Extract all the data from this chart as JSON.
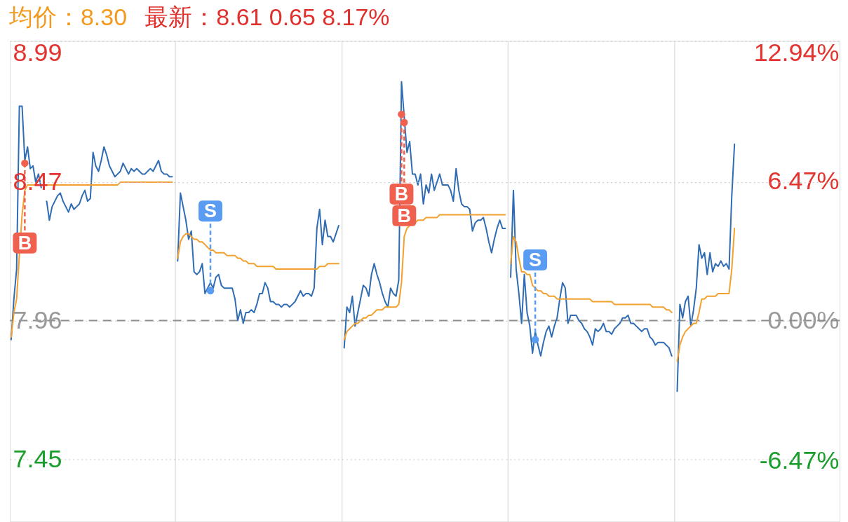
{
  "chart_data": {
    "type": "line",
    "title": "均价：8.30",
    "subtitle": "最新：8.61 0.65 8.17%",
    "categories": [
      null,
      null,
      null,
      null,
      null,
      null,
      null,
      null,
      null,
      null,
      null,
      null,
      null,
      null,
      null,
      null,
      null,
      null,
      null,
      null,
      null,
      null,
      null,
      null,
      null,
      null,
      null,
      null,
      null,
      null,
      null,
      null,
      null,
      null,
      null,
      null,
      null,
      null,
      null,
      null,
      null,
      null,
      null,
      null,
      null,
      null,
      null,
      null,
      null,
      null,
      null,
      null,
      null,
      null,
      null,
      null,
      null,
      null,
      null,
      null,
      null,
      null,
      null,
      null,
      null,
      null,
      null,
      null,
      null,
      null,
      null,
      null,
      null,
      null,
      null,
      null,
      null,
      null,
      null,
      null,
      null,
      null,
      null,
      null,
      null,
      null,
      null,
      null,
      null,
      null,
      null,
      null,
      null,
      null,
      null,
      null,
      null,
      null,
      null,
      null,
      null,
      null,
      null,
      null,
      null,
      null,
      null,
      null,
      null,
      null,
      null,
      null,
      null,
      null,
      null,
      null,
      null,
      null,
      null,
      null,
      null,
      null,
      null,
      null,
      null,
      null,
      null,
      null,
      null,
      null,
      null,
      null,
      null,
      null,
      null,
      null,
      null,
      null,
      null,
      null,
      null,
      null,
      null,
      null,
      null,
      null,
      null,
      null,
      null,
      null,
      null,
      null,
      null,
      null,
      null,
      null,
      null,
      null,
      null,
      null,
      null,
      null,
      null,
      null,
      null,
      null,
      null,
      null,
      null,
      null,
      null,
      null,
      null,
      null,
      null,
      null,
      null,
      null,
      null,
      null,
      null,
      null,
      null,
      null,
      null,
      null,
      null,
      null,
      null,
      null,
      null,
      null,
      null,
      null,
      null,
      null,
      null,
      null,
      null,
      null,
      null,
      null,
      null,
      null,
      null,
      null,
      null,
      null,
      null,
      null,
      null,
      null,
      null,
      null,
      null,
      null,
      null,
      null,
      null,
      null,
      null,
      null,
      null,
      null,
      null,
      null,
      null,
      null,
      null,
      null,
      null,
      null,
      null,
      null,
      null,
      null,
      null,
      null,
      null,
      null,
      null,
      null,
      null,
      null,
      null,
      null,
      null,
      null,
      null,
      null,
      null,
      null,
      null,
      null,
      null,
      null,
      null,
      null,
      null,
      null,
      null,
      null,
      null,
      null,
      null,
      null,
      null,
      null,
      null,
      null,
      null,
      null,
      null,
      null,
      null,
      null,
      null,
      null,
      null,
      null,
      null,
      null,
      null,
      null,
      null,
      null,
      null,
      null,
      null,
      null,
      null,
      null,
      null,
      null,
      null,
      null,
      null,
      null,
      null,
      null,
      null,
      null,
      null,
      null
    ],
    "ylim": [
      7.22,
      8.99
    ],
    "yticks": [
      8.99,
      8.47,
      7.96,
      7.45
    ],
    "y2lim": [
      -9.3,
      12.94
    ],
    "y2ticks": [
      {
        "value": 12.94,
        "label": "12.94%"
      },
      {
        "value": 6.47,
        "label": "6.47%"
      },
      {
        "value": 0,
        "label": "0.00%"
      },
      {
        "value": -6.47,
        "label": "-6.47%"
      }
    ],
    "ref_lines": [
      {
        "axis": "y2",
        "value": 0,
        "color": "#8c8c8c",
        "line_style": "dashed"
      }
    ],
    "grid": true,
    "tick_labels": "y",
    "series": [
      {
        "color": "#2f6cb3",
        "values": [
          7.89,
          8.04,
          8.15,
          8.75,
          8.75,
          8.55,
          8.6,
          8.52,
          8.53,
          8.47,
          8.5,
          8.45,
          null,
          8.4,
          8.33,
          8.38,
          8.4,
          8.42,
          8.43,
          8.4,
          8.38,
          8.36,
          8.39,
          8.37,
          8.38,
          8.39,
          8.42,
          8.44,
          8.4,
          8.41,
          8.58,
          8.53,
          8.51,
          8.55,
          8.6,
          8.57,
          8.53,
          8.51,
          8.49,
          8.5,
          8.51,
          8.54,
          8.52,
          8.5,
          8.52,
          8.51,
          8.52,
          8.51,
          8.5,
          8.5,
          8.51,
          8.52,
          8.51,
          8.53,
          8.55,
          8.51,
          8.5,
          8.5,
          8.49,
          8.49,
          null,
          8.18,
          8.43,
          8.38,
          8.33,
          8.26,
          8.29,
          8.14,
          8.13,
          8.14,
          8.17,
          8.06,
          8.08,
          8.1,
          8.08,
          8.12,
          8.13,
          8.09,
          8.08,
          8.08,
          8.08,
          8.08,
          8.04,
          7.96,
          8.0,
          7.95,
          7.99,
          7.99,
          8.0,
          7.99,
          8.02,
          8.06,
          8.06,
          8.1,
          8.08,
          8.03,
          8.03,
          8.02,
          8.02,
          8.01,
          8.02,
          8.02,
          8.01,
          8.02,
          8.03,
          8.05,
          8.07,
          8.05,
          8.06,
          8.06,
          8.05,
          8.08,
          8.3,
          8.37,
          8.24,
          8.33,
          8.27,
          8.27,
          8.25,
          8.28,
          8.31,
          null,
          7.86,
          8.01,
          7.99,
          8.05,
          7.94,
          7.99,
          8.04,
          8.09,
          8.08,
          8.05,
          8.13,
          8.17,
          8.13,
          8.1,
          8.06,
          8.03,
          8.01,
          8.08,
          8.06,
          8.05,
          8.11,
          8.84,
          8.71,
          8.58,
          8.62,
          8.5,
          8.5,
          8.46,
          8.5,
          8.39,
          8.46,
          8.43,
          8.5,
          8.44,
          8.47,
          8.5,
          8.46,
          8.46,
          8.46,
          8.44,
          8.4,
          8.52,
          8.44,
          8.39,
          8.38,
          8.38,
          8.37,
          8.29,
          8.32,
          8.33,
          8.33,
          8.34,
          8.3,
          8.25,
          8.21,
          8.26,
          8.3,
          8.33,
          8.3,
          8.3,
          null,
          8.12,
          8.44,
          8.15,
          8.06,
          7.95,
          8.13,
          7.99,
          7.94,
          7.84,
          7.92,
          7.87,
          7.83,
          7.88,
          7.92,
          7.94,
          7.9,
          7.94,
          7.97,
          8.04,
          8.1,
          8.08,
          7.95,
          7.98,
          7.98,
          7.98,
          7.96,
          7.95,
          7.93,
          7.92,
          7.9,
          7.87,
          7.93,
          7.92,
          7.93,
          7.95,
          7.92,
          7.92,
          7.91,
          7.93,
          7.94,
          7.95,
          7.97,
          7.97,
          7.98,
          7.95,
          7.95,
          7.94,
          7.93,
          7.92,
          7.93,
          7.93,
          7.9,
          7.89,
          7.87,
          7.88,
          7.88,
          7.88,
          7.87,
          7.86,
          7.83,
          null,
          7.7,
          8.02,
          7.97,
          8.03,
          8.05,
          7.94,
          8.0,
          8.08,
          8.24,
          8.19,
          8.21,
          8.13,
          8.21,
          8.14,
          8.17,
          8.16,
          8.18,
          8.16,
          8.17,
          8.15,
          8.42,
          8.61,
          null,
          null,
          null,
          null,
          null,
          null,
          null,
          null,
          null,
          null,
          null,
          null,
          null,
          null,
          null,
          null,
          null,
          null,
          null,
          null,
          null,
          null,
          null,
          null,
          null,
          null,
          null,
          null,
          null,
          null,
          null,
          null,
          null,
          null,
          null,
          null,
          null,
          null
        ]
      },
      {
        "color": "#f2a12e",
        "values": [
          7.9,
          7.99,
          8.04,
          8.2,
          8.35,
          8.44,
          8.46,
          8.46,
          8.46,
          8.46,
          null,
          null,
          null,
          8.46,
          8.46,
          8.46,
          8.46,
          8.46,
          8.46,
          8.46,
          8.46,
          8.46,
          8.46,
          8.46,
          8.46,
          8.46,
          8.46,
          8.46,
          8.46,
          8.46,
          8.46,
          8.46,
          8.46,
          8.46,
          8.46,
          8.46,
          8.46,
          8.46,
          8.46,
          8.46,
          8.47,
          8.47,
          8.47,
          8.47,
          8.47,
          8.47,
          8.47,
          8.47,
          8.47,
          8.47,
          8.47,
          8.47,
          8.47,
          8.47,
          8.47,
          8.47,
          8.47,
          8.47,
          8.47,
          8.47,
          null,
          8.19,
          8.25,
          8.27,
          8.28,
          8.28,
          8.27,
          8.26,
          8.26,
          8.25,
          8.25,
          8.24,
          8.23,
          8.22,
          8.22,
          8.21,
          8.21,
          8.21,
          8.21,
          8.2,
          8.2,
          8.2,
          8.2,
          8.19,
          8.19,
          8.18,
          8.18,
          8.17,
          8.17,
          8.17,
          8.16,
          8.16,
          8.16,
          8.16,
          8.16,
          8.16,
          8.16,
          8.15,
          8.15,
          8.15,
          8.15,
          8.15,
          8.15,
          8.15,
          8.15,
          8.15,
          8.15,
          8.15,
          8.15,
          8.15,
          8.15,
          8.15,
          8.15,
          8.16,
          8.16,
          8.16,
          8.17,
          8.17,
          8.17,
          8.17,
          8.17,
          null,
          7.89,
          7.92,
          7.93,
          7.94,
          7.95,
          7.95,
          7.96,
          7.97,
          7.97,
          7.98,
          7.98,
          7.99,
          8.0,
          8.0,
          8.0,
          8.01,
          8.01,
          8.01,
          8.01,
          8.01,
          8.02,
          8.1,
          8.27,
          8.3,
          8.31,
          null,
          8.32,
          8.33,
          8.33,
          8.33,
          8.34,
          8.34,
          8.34,
          8.34,
          8.34,
          8.35,
          8.35,
          8.35,
          8.35,
          8.35,
          8.35,
          8.35,
          8.35,
          8.35,
          8.35,
          8.35,
          8.35,
          8.35,
          8.35,
          8.35,
          8.35,
          8.35,
          8.35,
          8.35,
          8.35,
          8.35,
          8.35,
          8.35,
          8.35,
          8.35,
          null,
          8.17,
          8.27,
          8.25,
          8.19,
          8.14,
          8.14,
          8.13,
          8.13,
          8.09,
          8.08,
          8.07,
          8.07,
          8.06,
          8.06,
          8.05,
          8.05,
          8.05,
          8.04,
          8.04,
          8.04,
          8.04,
          8.04,
          8.04,
          8.04,
          8.04,
          8.04,
          8.04,
          8.04,
          8.04,
          8.04,
          8.03,
          8.03,
          8.03,
          8.03,
          8.03,
          8.03,
          8.03,
          8.03,
          8.02,
          8.02,
          8.02,
          8.02,
          8.02,
          8.02,
          8.02,
          8.02,
          8.02,
          8.02,
          8.02,
          8.02,
          8.02,
          8.02,
          8.01,
          8.01,
          8.01,
          8.01,
          8.01,
          8.0,
          8.0,
          7.99,
          null,
          7.81,
          7.87,
          7.9,
          7.92,
          7.93,
          7.94,
          7.95,
          7.95,
          7.99,
          8.04,
          8.04,
          8.05,
          8.05,
          8.05,
          8.05,
          8.06,
          8.06,
          8.06,
          8.06,
          8.06,
          8.15,
          8.3,
          null,
          null,
          null,
          null,
          null,
          null,
          null,
          null,
          null,
          null,
          null,
          null,
          null,
          null,
          null,
          null,
          null,
          null,
          null,
          null,
          null,
          null,
          null,
          null,
          null,
          null,
          null,
          null,
          null,
          null,
          null,
          null,
          null,
          null,
          null,
          null,
          null,
          null
        ]
      },
      {
        "type": "scatter",
        "name": "B",
        "color": "#f0604f",
        "marker": "circle",
        "values": [
          null,
          null,
          null,
          null,
          null,
          8.54,
          null,
          null,
          null,
          null,
          null,
          null,
          null,
          null,
          null,
          null,
          null,
          null,
          null,
          null,
          null,
          null,
          null,
          null,
          null,
          null,
          null,
          null,
          null,
          null,
          null,
          null,
          null,
          null,
          null,
          null,
          null,
          null,
          null,
          null,
          null,
          null,
          null,
          null,
          null,
          null,
          null,
          null,
          null,
          null,
          null,
          null,
          null,
          null,
          null,
          null,
          null,
          null,
          null,
          null,
          null,
          null,
          null,
          null,
          null,
          null,
          null,
          null,
          null,
          null,
          null,
          null,
          null,
          null,
          null,
          null,
          null,
          null,
          null,
          null,
          null,
          null,
          null,
          null,
          null,
          null,
          null,
          null,
          null,
          null,
          null,
          null,
          null,
          null,
          null,
          null,
          null,
          null,
          null,
          null,
          null,
          null,
          null,
          null,
          null,
          null,
          null,
          null,
          null,
          null,
          null,
          null,
          null,
          null,
          null,
          null,
          null,
          null,
          null,
          null,
          null,
          null,
          null,
          null,
          null,
          null,
          null,
          null,
          null,
          null,
          null,
          null,
          null,
          null,
          null,
          null,
          null,
          null,
          null,
          null,
          null,
          null,
          null,
          8.72,
          8.69,
          null,
          null,
          null,
          null,
          null,
          null,
          null,
          null,
          null,
          null,
          null,
          null,
          null,
          null,
          null,
          null,
          null,
          null,
          null,
          null,
          null,
          null,
          null,
          null,
          null,
          null,
          null,
          null,
          null,
          null,
          null,
          null,
          null,
          null,
          null,
          null,
          null,
          null,
          null,
          null,
          null,
          null,
          null,
          null,
          null,
          null,
          null,
          null,
          null,
          null,
          null,
          null,
          null,
          null,
          null,
          null,
          null,
          null,
          null,
          null,
          null,
          null,
          null,
          null,
          null,
          null,
          null,
          null,
          null,
          null,
          null,
          null,
          null,
          null,
          null,
          null,
          null,
          null,
          null,
          null,
          null,
          null,
          null,
          null,
          null,
          null,
          null,
          null,
          null,
          null,
          null,
          null,
          null,
          null,
          null,
          null,
          null,
          null,
          null,
          null,
          null,
          null,
          null,
          null,
          null,
          null,
          null,
          null,
          null,
          null,
          null,
          null,
          null,
          null,
          null,
          null,
          null,
          null,
          null,
          null,
          null,
          null,
          null,
          null,
          null,
          null,
          null,
          null,
          null,
          null,
          null,
          null,
          null,
          null,
          null,
          null,
          null,
          null,
          null,
          null,
          null,
          null,
          null,
          null,
          null,
          null,
          null,
          null,
          null,
          null,
          null,
          null,
          null,
          null,
          null,
          null,
          null,
          null,
          null
        ]
      },
      {
        "type": "scatter",
        "name": "S",
        "color": "#5a9cf2",
        "marker": "circle",
        "values": [
          null,
          null,
          null,
          null,
          null,
          null,
          null,
          null,
          null,
          null,
          null,
          null,
          null,
          null,
          null,
          null,
          null,
          null,
          null,
          null,
          null,
          null,
          null,
          null,
          null,
          null,
          null,
          null,
          null,
          null,
          null,
          null,
          null,
          null,
          null,
          null,
          null,
          null,
          null,
          null,
          null,
          null,
          null,
          null,
          null,
          null,
          null,
          null,
          null,
          null,
          null,
          null,
          null,
          null,
          null,
          null,
          null,
          null,
          null,
          null,
          null,
          null,
          null,
          null,
          null,
          null,
          null,
          null,
          null,
          null,
          null,
          null,
          null,
          8.07,
          null,
          null,
          null,
          null,
          null,
          null,
          null,
          null,
          null,
          null,
          null,
          null,
          null,
          null,
          null,
          null,
          null,
          null,
          null,
          null,
          null,
          null,
          null,
          null,
          null,
          null,
          null,
          null,
          null,
          null,
          null,
          null,
          null,
          null,
          null,
          null,
          null,
          null,
          null,
          null,
          null,
          null,
          null,
          null,
          null,
          null,
          null,
          null,
          null,
          null,
          null,
          null,
          null,
          null,
          null,
          null,
          null,
          null,
          null,
          null,
          null,
          null,
          null,
          null,
          null,
          null,
          null,
          null,
          null,
          null,
          null,
          null,
          null,
          null,
          null,
          null,
          null,
          null,
          null,
          null,
          null,
          null,
          null,
          null,
          null,
          null,
          null,
          null,
          null,
          null,
          null,
          null,
          null,
          null,
          null,
          null,
          null,
          null,
          null,
          null,
          null,
          null,
          null,
          null,
          null,
          null,
          null,
          null,
          null,
          null,
          null,
          null,
          null,
          null,
          null,
          null,
          null,
          null,
          7.89,
          null,
          null,
          null,
          null,
          null,
          null,
          null,
          null,
          null,
          null,
          null,
          null,
          null,
          null,
          null,
          null,
          null,
          null,
          null,
          null,
          null,
          null,
          null,
          null,
          null,
          null,
          null,
          null,
          null,
          null,
          null,
          null,
          null,
          null,
          null,
          null,
          null,
          null,
          null,
          null,
          null,
          null,
          null,
          null,
          null,
          null,
          null,
          null,
          null,
          null,
          null,
          null,
          null,
          null,
          null,
          null,
          null,
          null,
          null,
          null,
          null,
          null,
          null,
          null,
          null,
          null,
          null,
          null,
          null,
          null,
          null,
          null,
          null,
          null,
          null,
          null,
          null,
          null,
          null,
          null,
          null,
          null,
          null,
          null,
          null,
          null,
          null,
          null,
          null,
          null,
          null,
          null,
          null,
          null,
          null,
          null,
          null,
          null,
          null,
          null,
          null,
          null,
          null,
          null,
          null,
          null,
          null,
          null,
          null,
          null,
          null
        ]
      }
    ]
  }
}
